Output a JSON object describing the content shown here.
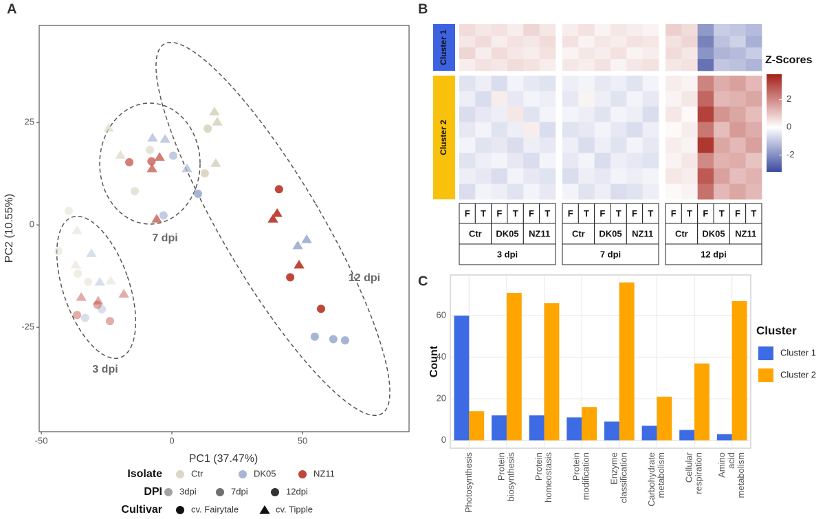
{
  "panel_labels": [
    "A",
    "B",
    "C"
  ],
  "chart_data": [
    {
      "type": "scatter",
      "x_label": "PC1 (37.47%)",
      "y_label": "PC2 (10.55%)",
      "xlim": [
        -50.8,
        90.8
      ],
      "ylim": [
        -50.5,
        48.7
      ],
      "xticks": [
        -50,
        0,
        50
      ],
      "yticks": [
        -25,
        0,
        25
      ],
      "grid": false,
      "annotations": [
        "3 dpi",
        "7 dpi",
        "12 dpi"
      ],
      "legend": {
        "isolate": {
          "title": "Isolate",
          "items": [
            {
              "label": "Ctr",
              "color": "#dcd8c6"
            },
            {
              "label": "DK05",
              "color": "#a7b5d4"
            },
            {
              "label": "NZ11",
              "color": "#c0463a"
            }
          ]
        },
        "dpi": {
          "title": "DPI",
          "items": [
            {
              "label": "3dpi",
              "opacity": 0.45
            },
            {
              "label": "7dpi",
              "opacity": 0.7
            },
            {
              "label": "12dpi",
              "opacity": 1
            }
          ]
        },
        "cultivar": {
          "title": "Cultivar",
          "items": [
            {
              "label": "cv. Fairytale",
              "shape": "circle"
            },
            {
              "label": "cv. Tipple",
              "shape": "triangle"
            }
          ]
        }
      },
      "points": {
        "x": [
          -43.4,
          -39.5,
          -36.3,
          -36.8,
          -36,
          -30.8,
          -32.1,
          -27.6,
          -23.4,
          -26.8,
          -34.7,
          -28.2,
          -36.3,
          -33.2,
          -23.7,
          -18.4,
          -28.5,
          -24.2,
          -19.7,
          -14.2,
          -16.3,
          -8.4,
          -7.4,
          -2.6,
          0.5,
          -7.6,
          -7.8,
          -4.7,
          5.8,
          -3.2,
          -5.8,
          13.7,
          16.3,
          17.4,
          16.8,
          12.6,
          10,
          41,
          40.3,
          38.7,
          48.2,
          51.6,
          48.7,
          45.3,
          57.1,
          54.7,
          61.8,
          66.3
        ],
        "y": [
          -6.4,
          3.4,
          -1.3,
          -9.7,
          -11.9,
          -6.9,
          -13.9,
          -13.9,
          -13.6,
          -20.6,
          -17.6,
          -18.5,
          -22,
          -22.7,
          -23.5,
          -16.8,
          -19.5,
          23.7,
          17.1,
          8.2,
          15.3,
          18.3,
          21.3,
          21,
          16.9,
          13.8,
          15.5,
          16.6,
          13.8,
          2.3,
          1.5,
          23.5,
          27.7,
          25.2,
          15.1,
          12.6,
          7.6,
          8.7,
          2.9,
          1.5,
          -5,
          -3.5,
          -9.7,
          -12.8,
          -20.5,
          -27.3,
          -27.9,
          -28.2
        ],
        "isolate": [
          "Ctr",
          "Ctr",
          "Ctr",
          "Ctr",
          "Ctr",
          "DK05",
          "Ctr",
          "DK05",
          "Ctr",
          "DK05",
          "NZ11",
          "NZ11",
          "NZ11",
          "DK05",
          "NZ11",
          "NZ11",
          "NZ11",
          "Ctr",
          "Ctr",
          "Ctr",
          "NZ11",
          "Ctr",
          "DK05",
          "DK05",
          "DK05",
          "NZ11",
          "NZ11",
          "NZ11",
          "DK05",
          "DK05",
          "NZ11",
          "Ctr",
          "Ctr",
          "Ctr",
          "Ctr",
          "Ctr",
          "DK05",
          "NZ11",
          "NZ11",
          "NZ11",
          "DK05",
          "DK05",
          "NZ11",
          "NZ11",
          "NZ11",
          "DK05",
          "DK05",
          "DK05"
        ],
        "dpi": [
          "3dpi",
          "3dpi",
          "3dpi",
          "3dpi",
          "3dpi",
          "3dpi",
          "3dpi",
          "3dpi",
          "3dpi",
          "3dpi",
          "3dpi",
          "3dpi",
          "3dpi",
          "3dpi",
          "3dpi",
          "3dpi",
          "3dpi",
          "7dpi",
          "7dpi",
          "7dpi",
          "7dpi",
          "7dpi",
          "7dpi",
          "7dpi",
          "7dpi",
          "7dpi",
          "7dpi",
          "7dpi",
          "7dpi",
          "7dpi",
          "7dpi",
          "12dpi",
          "12dpi",
          "12dpi",
          "12dpi",
          "12dpi",
          "12dpi",
          "12dpi",
          "12dpi",
          "12dpi",
          "12dpi",
          "12dpi",
          "12dpi",
          "12dpi",
          "12dpi",
          "12dpi",
          "12dpi",
          "12dpi"
        ],
        "cultivar": [
          "cv. Fairytale",
          "cv. Fairytale",
          "cv. Tipple",
          "cv. Tipple",
          "cv. Fairytale",
          "cv. Tipple",
          "cv. Fairytale",
          "cv. Tipple",
          "cv. Tipple",
          "cv. Fairytale",
          "cv. Tipple",
          "cv. Tipple",
          "cv. Fairytale",
          "cv. Fairytale",
          "cv. Fairytale",
          "cv. Tipple",
          "cv. Fairytale",
          "cv. Tipple",
          "cv. Tipple",
          "cv. Fairytale",
          "cv. Fairytale",
          "cv. Fairytale",
          "cv. Tipple",
          "cv. Tipple",
          "cv. Fairytale",
          "cv. Tipple",
          "cv. Fairytale",
          "cv. Tipple",
          "cv. Tipple",
          "cv. Fairytale",
          "cv. Tipple",
          "cv. Fairytale",
          "cv. Tipple",
          "cv. Tipple",
          "cv. Tipple",
          "cv. Fairytale",
          "cv. Fairytale",
          "cv. Fairytale",
          "cv. Tipple",
          "cv. Tipple",
          "cv. Tipple",
          "cv. Tipple",
          "cv. Tipple",
          "cv. Fairytale",
          "cv. Fairytale",
          "cv. Fairytale",
          "cv. Fairytale",
          "cv. Fairytale"
        ]
      }
    },
    {
      "type": "heatmap",
      "colorbar": {
        "title": "Z-Scores",
        "lim": [
          -3.2,
          3.8
        ],
        "ticks": [
          -2,
          0,
          2
        ],
        "colors": [
          "#3b4a9e",
          "#ffffff",
          "#a51f17"
        ]
      },
      "clusters": [
        {
          "name": "Cluster 1",
          "color": "#3d62e0",
          "values": [
            [
              0.6,
              0.4,
              0.5,
              0.3,
              0.7,
              0.4,
              0.3,
              0.5,
              0.2,
              0.4,
              0.3,
              0.2,
              0.8,
              0.6,
              -1.8,
              -0.9,
              -1.0,
              -1.2
            ],
            [
              0.4,
              0.6,
              0.3,
              0.5,
              0.4,
              0.6,
              0.5,
              0.2,
              0.4,
              0.3,
              0.5,
              0.4,
              0.5,
              0.7,
              -2.2,
              -1.1,
              -0.8,
              -1.4
            ],
            [
              0.7,
              0.3,
              0.6,
              0.4,
              0.3,
              0.5,
              0.2,
              0.4,
              0.3,
              0.5,
              0.2,
              0.3,
              0.6,
              0.4,
              -1.9,
              -1.3,
              -1.2,
              -0.9
            ],
            [
              0.3,
              0.5,
              0.4,
              0.6,
              0.5,
              0.3,
              0.4,
              0.3,
              0.5,
              0.2,
              0.4,
              0.5,
              0.4,
              0.5,
              -2.5,
              -1.0,
              -1.1,
              -1.3
            ]
          ]
        },
        {
          "name": "Cluster 2",
          "color": "#f8c10c",
          "values": [
            [
              -0.5,
              -0.3,
              -0.6,
              -0.2,
              -0.4,
              -0.5,
              -0.3,
              -0.2,
              -0.4,
              -0.3,
              -0.5,
              -0.2,
              0.3,
              0.2,
              2.1,
              1.4,
              1.6,
              1.2
            ],
            [
              -0.3,
              -0.6,
              0.3,
              -0.4,
              -0.2,
              -0.3,
              -0.4,
              0.2,
              -0.3,
              -0.5,
              -0.2,
              -0.4,
              0.2,
              0.4,
              2.6,
              1.2,
              1.3,
              1.5
            ],
            [
              -0.6,
              -0.4,
              -0.3,
              0.4,
              -0.5,
              -0.2,
              -0.2,
              -0.3,
              -0.5,
              -0.2,
              -0.3,
              -0.6,
              0.4,
              0.1,
              3.2,
              1.8,
              1.5,
              1.1
            ],
            [
              -0.4,
              -0.2,
              -0.5,
              -0.3,
              0.3,
              -0.6,
              -0.5,
              -0.4,
              -0.2,
              -0.4,
              -0.6,
              -0.3,
              0.1,
              0.3,
              2.3,
              1.1,
              1.7,
              1.4
            ],
            [
              -0.2,
              -0.5,
              -0.4,
              -0.6,
              -0.3,
              -0.4,
              -0.3,
              -0.6,
              -0.3,
              -0.5,
              -0.2,
              -0.4,
              0.3,
              0.2,
              3.4,
              1.5,
              1.2,
              1.6
            ],
            [
              -0.5,
              -0.3,
              -0.2,
              -0.4,
              -0.6,
              -0.2,
              -0.4,
              -0.2,
              -0.6,
              -0.3,
              -0.4,
              -0.5,
              0.2,
              0.4,
              2.0,
              1.3,
              1.4,
              1.0
            ],
            [
              -0.3,
              -0.4,
              -0.6,
              -0.2,
              -0.4,
              -0.5,
              -0.6,
              -0.3,
              -0.4,
              -0.2,
              -0.3,
              -0.2,
              0.4,
              0.3,
              2.8,
              1.6,
              1.1,
              1.3
            ],
            [
              -0.6,
              -0.2,
              -0.3,
              -0.5,
              -0.2,
              -0.4,
              -0.2,
              -0.5,
              -0.3,
              -0.6,
              -0.5,
              -0.3,
              0.1,
              0.2,
              2.4,
              1.2,
              1.5,
              1.2
            ]
          ]
        }
      ],
      "column_headers": {
        "cultivar": [
          "F",
          "T",
          "F",
          "T",
          "F",
          "T",
          "F",
          "T",
          "F",
          "T",
          "F",
          "T",
          "F",
          "T",
          "F",
          "T",
          "F",
          "T"
        ],
        "isolate": [
          "Ctr",
          "DK05",
          "NZ11",
          "Ctr",
          "DK05",
          "NZ11",
          "Ctr",
          "DK05",
          "NZ11"
        ],
        "dpi": [
          "3 dpi",
          "7 dpi",
          "12 dpi"
        ]
      }
    },
    {
      "type": "bar",
      "y_label": "Count",
      "legend_title": "Cluster",
      "categories": [
        [
          "Photosynthesis"
        ],
        [
          "Protein",
          "biosynthesis"
        ],
        [
          "Protein",
          "homeostasis"
        ],
        [
          "Protein",
          "modification"
        ],
        [
          "Enzyme",
          "classification"
        ],
        [
          "Carbohydrate",
          "metabolism"
        ],
        [
          "Cellular",
          "respiration"
        ],
        [
          "Amino",
          "acid",
          "metabolism"
        ]
      ],
      "series": [
        {
          "name": "Cluster 1",
          "color": "#3d6be3",
          "values": [
            60,
            12,
            12,
            11,
            9,
            7,
            5,
            3
          ]
        },
        {
          "name": "Cluster 2",
          "color": "#ffa500",
          "values": [
            14,
            71,
            66,
            16,
            76,
            21,
            37,
            67
          ]
        }
      ],
      "ylim": [
        -3.8,
        79.6
      ],
      "yticks": [
        0,
        20,
        40,
        60
      ],
      "grid": true
    }
  ]
}
